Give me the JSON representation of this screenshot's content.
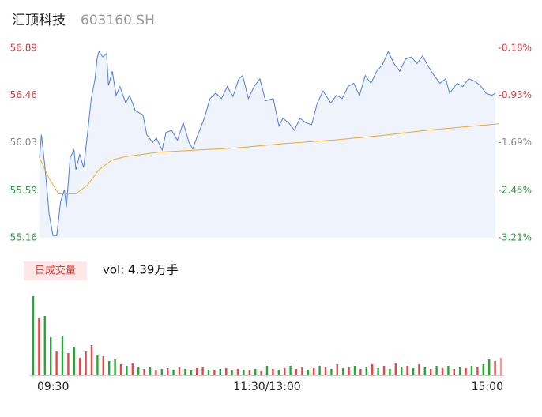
{
  "header": {
    "name": "汇顶科技",
    "code": "603160.SH"
  },
  "chart_data": [
    {
      "type": "line",
      "xlim": [
        0,
        240
      ],
      "ylim": [
        55.16,
        56.89
      ],
      "yticks": [
        55.16,
        55.59,
        56.03,
        56.46,
        56.89
      ],
      "ytick_colors": [
        "#2a9a3a",
        "#2a9a3a",
        "#888888",
        "#e23b3b",
        "#e23b3b"
      ],
      "y2lim": [
        -3.21,
        -0.18
      ],
      "y2ticks": [
        {
          "value": -3.21,
          "label": "-3.21%"
        },
        {
          "value": -2.45,
          "label": "-2.45%"
        },
        {
          "value": -1.69,
          "label": "-1.69%"
        },
        {
          "value": -0.93,
          "label": "-0.93%"
        },
        {
          "value": -0.18,
          "label": "-0.18%"
        }
      ],
      "y2tick_colors": [
        "#2a9a3a",
        "#2a9a3a",
        "#888888",
        "#e23b3b",
        "#e23b3b"
      ],
      "area_color": "#eef3fc",
      "series": [
        {
          "color": "#4e7de0",
          "x": [
            0,
            1,
            3,
            5,
            7,
            9,
            11,
            13,
            14,
            16,
            18,
            19,
            21,
            23,
            25,
            27,
            29,
            30,
            31,
            33,
            35,
            36,
            38,
            40,
            42,
            45,
            47,
            50,
            54,
            56,
            59,
            61,
            64,
            66,
            69,
            72,
            75,
            78,
            80,
            82,
            86,
            89,
            92,
            95,
            98,
            101,
            104,
            106,
            109,
            112,
            115,
            118,
            122,
            125,
            127,
            130,
            133,
            136,
            139,
            142,
            145,
            148,
            152,
            155,
            158,
            161,
            164,
            167,
            170,
            173,
            176,
            179,
            182,
            185,
            188,
            191,
            194,
            197,
            200,
            203,
            206,
            209,
            212,
            214,
            218,
            221,
            224,
            227,
            230,
            233,
            236,
            238
          ],
          "values": [
            55.89,
            56.1,
            55.78,
            55.38,
            55.18,
            55.18,
            55.49,
            55.6,
            55.44,
            55.89,
            55.96,
            55.78,
            55.92,
            55.8,
            56.1,
            56.43,
            56.61,
            56.79,
            56.86,
            56.81,
            56.84,
            56.55,
            56.68,
            56.46,
            56.54,
            56.39,
            56.46,
            56.32,
            56.28,
            56.1,
            56.03,
            56.07,
            55.96,
            56.12,
            56.14,
            56.05,
            56.21,
            56.03,
            55.97,
            56.07,
            56.25,
            56.43,
            56.48,
            56.43,
            56.54,
            56.45,
            56.61,
            56.64,
            56.43,
            56.54,
            56.61,
            56.41,
            56.43,
            56.18,
            56.25,
            56.21,
            56.14,
            56.25,
            56.21,
            56.19,
            56.39,
            56.5,
            56.39,
            56.46,
            56.43,
            56.54,
            56.57,
            56.46,
            56.64,
            56.57,
            56.68,
            56.74,
            56.86,
            56.75,
            56.68,
            56.79,
            56.81,
            56.75,
            56.82,
            56.72,
            56.64,
            56.57,
            56.61,
            56.48,
            56.57,
            56.54,
            56.61,
            56.59,
            56.55,
            56.48,
            56.46,
            56.48
          ]
        },
        {
          "color": "#f0a830",
          "x": [
            0,
            5,
            10,
            19,
            25,
            31,
            38,
            45,
            62,
            82,
            103,
            128,
            153,
            177,
            202,
            227,
            240
          ],
          "values": [
            55.89,
            55.7,
            55.56,
            55.56,
            55.64,
            55.78,
            55.87,
            55.9,
            55.94,
            55.96,
            55.98,
            56.02,
            56.05,
            56.09,
            56.14,
            56.18,
            56.2
          ]
        }
      ]
    },
    {
      "type": "bar",
      "legend": "日成交量",
      "annotation": "vol: 4.39万手",
      "xlim": [
        0,
        240
      ],
      "ylim": [
        0,
        105
      ],
      "xticks": [
        {
          "value": 0,
          "label": "09:30"
        },
        {
          "value": 120,
          "label": "11:30/13:00"
        },
        {
          "value": 240,
          "label": "15:00"
        }
      ],
      "x": [
        0,
        3,
        6,
        9,
        12,
        15,
        18,
        21,
        24,
        27,
        30,
        33,
        36,
        39,
        42,
        45,
        48,
        51,
        54,
        57,
        60,
        63,
        66,
        69,
        72,
        75,
        78,
        81,
        84,
        87,
        90,
        93,
        96,
        99,
        102,
        105,
        108,
        111,
        114,
        117,
        120,
        123,
        126,
        129,
        132,
        135,
        138,
        141,
        144,
        147,
        150,
        153,
        156,
        159,
        162,
        165,
        168,
        171,
        174,
        177,
        180,
        183,
        186,
        189,
        192,
        195,
        198,
        201,
        204,
        207,
        210,
        213,
        216,
        219,
        222,
        225,
        228,
        231,
        234,
        237,
        240
      ],
      "values": [
        100,
        72,
        75,
        48,
        30,
        50,
        28,
        36,
        22,
        30,
        38,
        25,
        24,
        18,
        20,
        14,
        12,
        15,
        10,
        8,
        10,
        6,
        8,
        9,
        7,
        10,
        8,
        6,
        9,
        10,
        7,
        6,
        8,
        9,
        6,
        8,
        7,
        6,
        8,
        5,
        12,
        8,
        7,
        9,
        12,
        8,
        10,
        7,
        9,
        12,
        10,
        8,
        14,
        9,
        10,
        12,
        8,
        10,
        14,
        9,
        11,
        8,
        15,
        10,
        12,
        9,
        14,
        10,
        8,
        11,
        9,
        12,
        8,
        10,
        9,
        12,
        10,
        14,
        20,
        18,
        22
      ],
      "colors": [
        "#2a3",
        "#e44",
        "#2a3",
        "#2a3",
        "#e44",
        "#2a3",
        "#e44",
        "#2a3",
        "#e44",
        "#e44",
        "#e44",
        "#2a3",
        "#e44",
        "#2a3",
        "#2a3",
        "#e44",
        "#2a3",
        "#e44",
        "#2a3",
        "#e44",
        "#2a3",
        "#e44",
        "#2a3",
        "#e44",
        "#2a3",
        "#e44",
        "#2a3",
        "#2a3",
        "#e44",
        "#e44",
        "#2a3",
        "#e44",
        "#2a3",
        "#e44",
        "#2a3",
        "#e44",
        "#2a3",
        "#e44",
        "#2a3",
        "#e44",
        "#2a3",
        "#e44",
        "#2a3",
        "#e44",
        "#2a3",
        "#e44",
        "#e44",
        "#2a3",
        "#e44",
        "#2a3",
        "#e44",
        "#2a3",
        "#e44",
        "#2a3",
        "#e44",
        "#2a3",
        "#e44",
        "#2a3",
        "#e44",
        "#2a3",
        "#e44",
        "#2a3",
        "#e44",
        "#2a3",
        "#e44",
        "#2a3",
        "#e44",
        "#2a3",
        "#e44",
        "#2a3",
        "#e44",
        "#2a3",
        "#e44",
        "#2a3",
        "#e44",
        "#2a3",
        "#e44",
        "#2a3",
        "#2a3",
        "#e44",
        "#f99"
      ]
    }
  ]
}
